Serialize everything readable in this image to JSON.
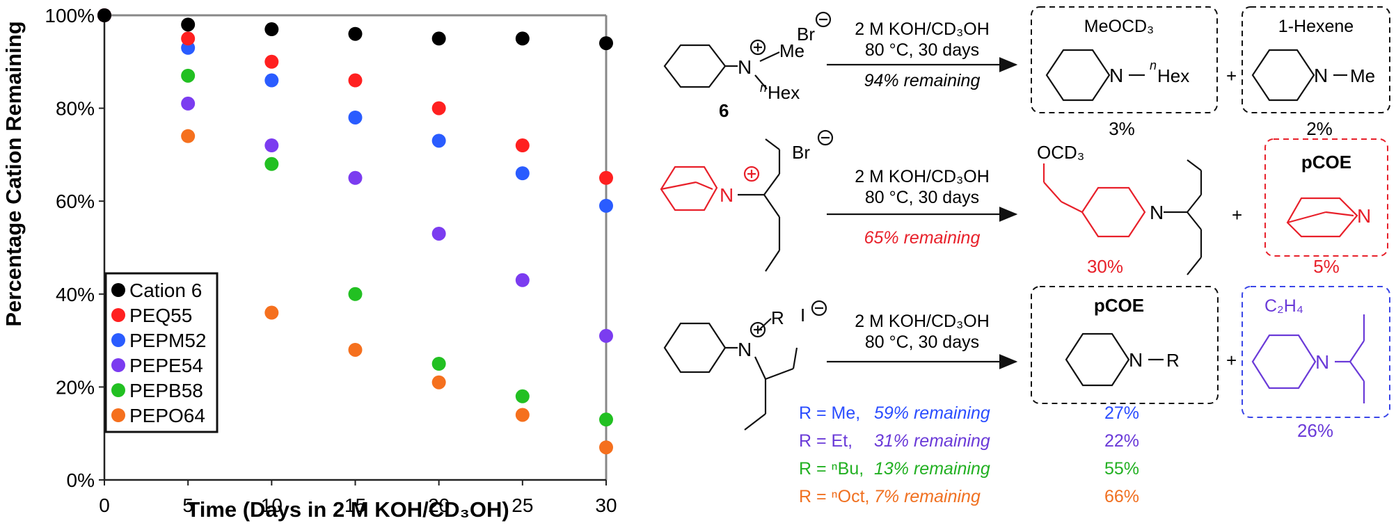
{
  "chart_data": {
    "type": "scatter",
    "xlabel": "Time (Days in 2 M KOH/CD₃OH)",
    "ylabel": "Percentage Cation Remaining",
    "xlim": [
      0,
      30
    ],
    "ylim": [
      0,
      100
    ],
    "x_ticks": [
      "0",
      "5",
      "10",
      "15",
      "20",
      "25",
      "30"
    ],
    "y_ticks": [
      "0%",
      "20%",
      "40%",
      "60%",
      "80%",
      "100%"
    ],
    "grid": false,
    "legend_position": "bottom-left",
    "series": [
      {
        "name": "Cation 6",
        "color": "#000000",
        "x": [
          0,
          5,
          10,
          15,
          20,
          25,
          30
        ],
        "y": [
          100,
          98,
          97,
          96,
          95,
          95,
          94
        ]
      },
      {
        "name": "PEQ55",
        "color": "#ff2020",
        "x": [
          0,
          5,
          10,
          15,
          20,
          25,
          30
        ],
        "y": [
          100,
          95,
          90,
          86,
          80,
          72,
          65
        ]
      },
      {
        "name": "PEPM52",
        "color": "#2a5cff",
        "x": [
          0,
          5,
          10,
          15,
          20,
          25,
          30
        ],
        "y": [
          100,
          93,
          86,
          78,
          73,
          66,
          59
        ]
      },
      {
        "name": "PEPE54",
        "color": "#7b3cf0",
        "x": [
          0,
          5,
          10,
          15,
          20,
          25,
          30
        ],
        "y": [
          100,
          81,
          72,
          65,
          53,
          43,
          31
        ]
      },
      {
        "name": "PEPB58",
        "color": "#22c022",
        "x": [
          0,
          5,
          10,
          15,
          20,
          25,
          30
        ],
        "y": [
          100,
          87,
          68,
          40,
          25,
          18,
          13
        ]
      },
      {
        "name": "PEPO64",
        "color": "#f5701e",
        "x": [
          0,
          5,
          10,
          15,
          20,
          25,
          30
        ],
        "y": [
          100,
          74,
          36,
          28,
          21,
          14,
          7
        ]
      }
    ]
  },
  "scheme": {
    "colors": {
      "black": "#111111",
      "red": "#e8202a",
      "blue": "#2a4dff",
      "purple": "#6a3ad8",
      "green": "#22b022",
      "orange": "#f07020"
    },
    "row1": {
      "counterion": "Br",
      "sub_me": "Me",
      "sub_hex_sup": "n",
      "sub_hex": "Hex",
      "compound_number": "6",
      "cond1": "2 M KOH/CD₃OH",
      "cond2": "80 °C, 30 days",
      "remaining": "94% remaining",
      "box1_title": "MeOCD₃",
      "box1_sub_sup": "n",
      "box1_sub": "Hex",
      "box1_yield": "3%",
      "box2_title": "1-Hexene",
      "box2_sub": "Me",
      "box2_yield": "2%",
      "plus": "+",
      "atom_n": "N"
    },
    "row2": {
      "counterion": "Br",
      "cond1": "2 M KOH/CD₃OH",
      "cond2": "80 °C, 30 days",
      "remaining": "65% remaining",
      "prod_label": "OCD₃",
      "prod_yield": "30%",
      "box_title": "pCOE",
      "box_yield": "5%",
      "plus": "+",
      "atom_n": "N"
    },
    "row3": {
      "counterion": "I",
      "sub_r": "R",
      "cond1": "2 M KOH/CD₃OH",
      "cond2": "80 °C, 30 days",
      "box1_title": "pCOE",
      "box1_sub": "R",
      "box2_title": "C₂H₄",
      "box2_yield": "26%",
      "plus": "+",
      "atom_n": "N",
      "results": [
        {
          "label": "R = Me,",
          "remaining": "59% remaining",
          "yield": "27%",
          "color": "#2a4dff"
        },
        {
          "label": "R = Et,",
          "remaining": "31% remaining",
          "yield": "22%",
          "color": "#6a3ad8"
        },
        {
          "label": "R = ⁿBu,",
          "remaining": "13% remaining",
          "yield": "55%",
          "color": "#22b022"
        },
        {
          "label": "R = ⁿOct,",
          "remaining": "7% remaining",
          "yield": "66%",
          "color": "#f07020"
        }
      ]
    }
  }
}
